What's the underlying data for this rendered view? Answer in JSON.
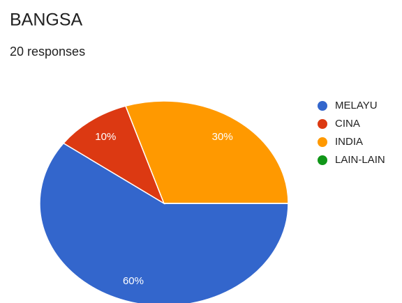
{
  "chart_data": {
    "type": "pie",
    "title": "BANGSA",
    "subtitle": "20 responses",
    "categories": [
      "MELAYU",
      "CINA",
      "INDIA",
      "LAIN-LAIN"
    ],
    "values": [
      60,
      10,
      30,
      0
    ],
    "value_labels": [
      "60%",
      "10%",
      "30%",
      null
    ],
    "colors": [
      "#3366cc",
      "#dc3912",
      "#ff9900",
      "#109618"
    ],
    "legend": "right"
  }
}
